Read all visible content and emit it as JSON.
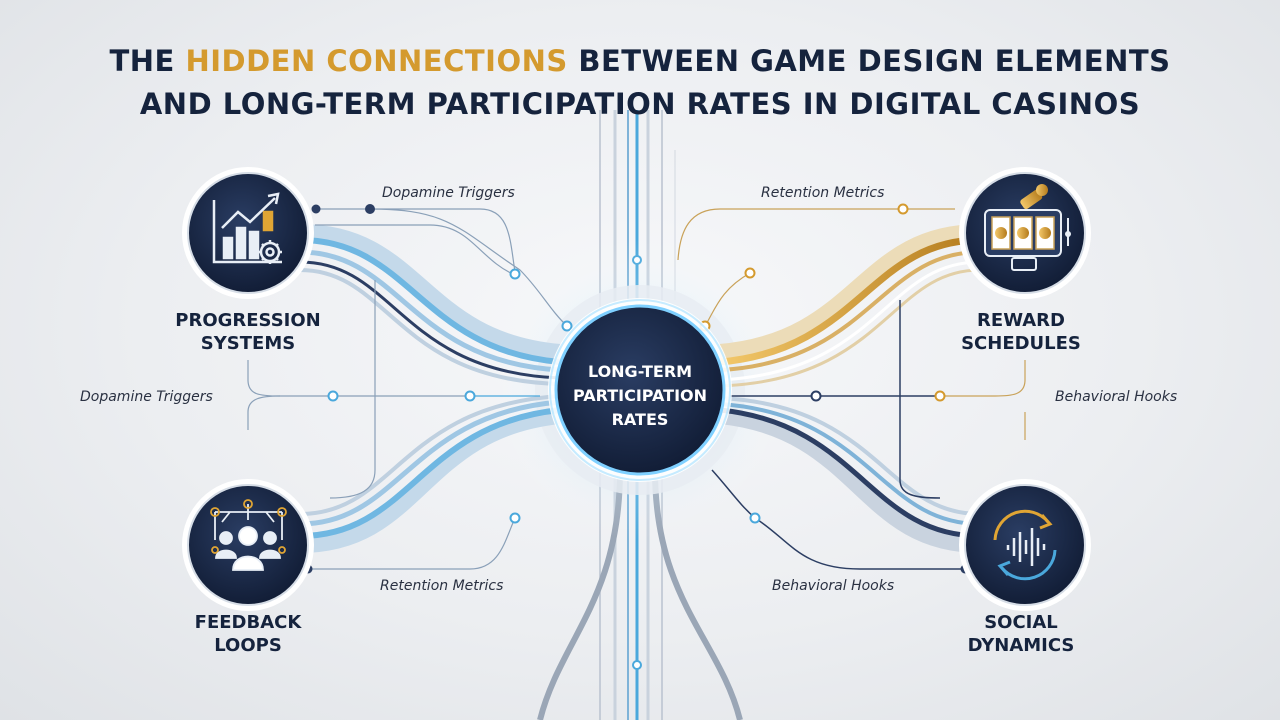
{
  "title": {
    "prefix": "THE ",
    "accent": "HIDDEN CONNECTIONS",
    "suffix": " BETWEEN GAME DESIGN ELEMENTS",
    "line2": "AND LONG-TERM PARTICIPATION RATES IN DIGITAL CASINOS"
  },
  "center": {
    "line1": "LONG-TERM",
    "line2": "PARTICIPATION",
    "line3": "RATES"
  },
  "nodes": {
    "progression": {
      "line1": "PROGRESSION",
      "line2": "SYSTEMS",
      "icon": "bar-chart-gear-icon"
    },
    "reward": {
      "line1": "REWARD",
      "line2": "SCHEDULES",
      "icon": "slot-machine-icon"
    },
    "feedback": {
      "line1": "FEEDBACK",
      "line2": "LOOPS",
      "icon": "network-people-icon"
    },
    "social": {
      "line1": "SOCIAL",
      "line2": "DYNAMICS",
      "icon": "cycle-waveform-icon"
    }
  },
  "connections": {
    "top_left": "Dopamine Triggers",
    "mid_left": "Dopamine Triggers",
    "bottom_left": "Retention Metrics",
    "top_right": "Retention Metrics",
    "mid_right": "Behavioral Hooks",
    "bottom_right": "Behavioral Hooks"
  },
  "colors": {
    "navy": "#15233d",
    "gold": "#d49a2e",
    "blue": "#4aa8dc",
    "node_bg": "#1b2a4a"
  }
}
